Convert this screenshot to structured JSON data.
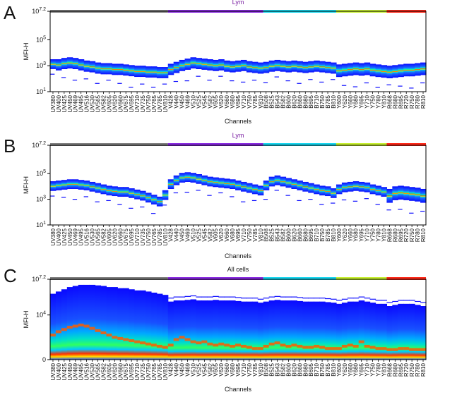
{
  "colors": {
    "gray": "#7f7f7f",
    "purple": "#8a2be2",
    "cyan": "#19d7f0",
    "lime": "#c8f032",
    "red": "#ff2a1a",
    "frame": "#000000",
    "density_low": "#1010ff",
    "density_mid": "#00e0a0",
    "density_high": "#ff2000",
    "lym_title": "#7a1fa2",
    "all_title": "#111111"
  },
  "chart_data": [
    {
      "type": "heatmap",
      "panel": "A",
      "title": "Lym",
      "xlabel": "Channels",
      "ylabel": "MFI-H",
      "yscale": "log",
      "ylim": [
        1,
        7.2
      ],
      "yticks": [
        {
          "base": "10",
          "exp": "7.2",
          "v": 7.2
        },
        {
          "base": "10",
          "exp": "5",
          "v": 5
        },
        {
          "base": "10",
          "exp": "3",
          "v": 3
        },
        {
          "base": "10",
          "exp": "1",
          "v": 1
        }
      ],
      "categories": [
        "UV380",
        "UV400",
        "UV425",
        "UV450",
        "UV469",
        "UV495",
        "UV516",
        "UV530",
        "UV565",
        "UV582",
        "UV605",
        "UV620",
        "UV660",
        "UV675",
        "UV695",
        "UV710",
        "UV735",
        "UV750",
        "UV765",
        "UV785",
        "UV810",
        "V428",
        "V440",
        "V450",
        "V469",
        "V510",
        "V525",
        "V545",
        "V582",
        "V605",
        "V620",
        "V660",
        "V680",
        "V695",
        "V710",
        "V750",
        "V785",
        "V810",
        "B508",
        "B525",
        "B543",
        "B582",
        "B600",
        "B620",
        "B660",
        "B680",
        "B695",
        "B710",
        "B750",
        "B785",
        "B810",
        "Y600",
        "Y620",
        "Y660",
        "Y680",
        "Y695",
        "Y710",
        "Y750",
        "Y780",
        "Y810",
        "R668",
        "R680",
        "R695",
        "R720",
        "R750",
        "R780",
        "R810"
      ],
      "groups": [
        {
          "color": "gray",
          "n": 21
        },
        {
          "color": "purple",
          "n": 17
        },
        {
          "color": "cyan",
          "n": 13
        },
        {
          "color": "lime",
          "n": 9
        },
        {
          "color": "red",
          "n": 7
        }
      ],
      "series": [
        {
          "name": "median",
          "values": [
            3.15,
            3.1,
            3.2,
            3.25,
            3.2,
            3.1,
            3.0,
            2.95,
            2.85,
            2.8,
            2.8,
            2.75,
            2.75,
            2.7,
            2.65,
            2.6,
            2.6,
            2.55,
            2.55,
            2.5,
            2.5,
            2.75,
            2.9,
            3.05,
            3.15,
            3.25,
            3.2,
            3.15,
            3.1,
            3.05,
            3.1,
            3.0,
            2.95,
            3.0,
            3.05,
            2.95,
            2.9,
            2.85,
            2.9,
            3.0,
            3.05,
            3.0,
            2.95,
            3.0,
            2.95,
            2.9,
            2.95,
            3.0,
            2.95,
            2.9,
            2.85,
            2.65,
            2.7,
            2.75,
            2.8,
            2.75,
            2.8,
            2.7,
            2.65,
            2.6,
            2.55,
            2.6,
            2.65,
            2.7,
            2.7,
            2.75,
            2.8
          ]
        },
        {
          "name": "spread",
          "values": [
            0.35,
            0.4,
            0.4,
            0.4,
            0.4,
            0.4,
            0.4,
            0.4,
            0.4,
            0.4,
            0.4,
            0.4,
            0.4,
            0.4,
            0.4,
            0.4,
            0.4,
            0.4,
            0.4,
            0.4,
            0.4,
            0.4,
            0.4,
            0.4,
            0.4,
            0.4,
            0.4,
            0.4,
            0.4,
            0.4,
            0.4,
            0.4,
            0.4,
            0.4,
            0.4,
            0.4,
            0.4,
            0.4,
            0.4,
            0.4,
            0.4,
            0.4,
            0.4,
            0.4,
            0.4,
            0.4,
            0.4,
            0.4,
            0.4,
            0.4,
            0.4,
            0.45,
            0.45,
            0.45,
            0.45,
            0.45,
            0.45,
            0.45,
            0.45,
            0.45,
            0.45,
            0.45,
            0.45,
            0.45,
            0.45,
            0.45,
            0.45
          ]
        }
      ]
    },
    {
      "type": "heatmap",
      "panel": "B",
      "title": "Lym",
      "xlabel": "Channels",
      "ylabel": "MFI-H",
      "yscale": "log",
      "ylim": [
        1,
        7.2
      ],
      "yticks": [
        {
          "base": "10",
          "exp": "7.2",
          "v": 7.2
        },
        {
          "base": "10",
          "exp": "5",
          "v": 5
        },
        {
          "base": "10",
          "exp": "3",
          "v": 3
        },
        {
          "base": "10",
          "exp": "1",
          "v": 1
        }
      ],
      "categories": [
        "UV380",
        "UV400",
        "UV425",
        "UV450",
        "UV469",
        "UV495",
        "UV516",
        "UV530",
        "UV565",
        "UV582",
        "UV605",
        "UV620",
        "UV660",
        "UV675",
        "UV695",
        "UV710",
        "UV735",
        "UV750",
        "UV765",
        "UV785",
        "UV810",
        "V428",
        "V440",
        "V450",
        "V469",
        "V510",
        "V525",
        "V545",
        "V582",
        "V605",
        "V620",
        "V660",
        "V680",
        "V695",
        "V710",
        "V750",
        "V785",
        "V810",
        "B508",
        "B525",
        "B543",
        "B582",
        "B600",
        "B620",
        "B660",
        "B680",
        "B695",
        "B710",
        "B750",
        "B785",
        "B810",
        "Y600",
        "Y620",
        "Y660",
        "Y680",
        "Y695",
        "Y710",
        "Y750",
        "Y780",
        "Y810",
        "R668",
        "R680",
        "R695",
        "R720",
        "R750",
        "R780",
        "R810"
      ],
      "groups": [
        {
          "color": "gray",
          "n": 21
        },
        {
          "color": "purple",
          "n": 17
        },
        {
          "color": "cyan",
          "n": 13
        },
        {
          "color": "lime",
          "n": 9
        },
        {
          "color": "red",
          "n": 7
        }
      ],
      "series": [
        {
          "name": "median",
          "values": [
            4.05,
            4.1,
            4.15,
            4.2,
            4.2,
            4.15,
            4.1,
            4.0,
            3.9,
            3.8,
            3.7,
            3.65,
            3.6,
            3.6,
            3.5,
            3.4,
            3.3,
            3.15,
            3.0,
            2.85,
            3.35,
            4.2,
            4.5,
            4.7,
            4.75,
            4.7,
            4.6,
            4.5,
            4.4,
            4.35,
            4.3,
            4.25,
            4.2,
            4.1,
            4.0,
            3.9,
            3.8,
            3.7,
            4.1,
            4.4,
            4.5,
            4.4,
            4.3,
            4.2,
            4.1,
            4.0,
            3.9,
            3.8,
            3.7,
            3.65,
            3.5,
            3.8,
            3.95,
            4.0,
            4.05,
            4.0,
            3.95,
            3.8,
            3.7,
            3.6,
            3.3,
            3.5,
            3.55,
            3.5,
            3.45,
            3.4,
            3.3
          ]
        },
        {
          "name": "spread",
          "values": [
            0.35,
            0.35,
            0.35,
            0.35,
            0.35,
            0.35,
            0.35,
            0.35,
            0.35,
            0.35,
            0.35,
            0.35,
            0.35,
            0.35,
            0.35,
            0.35,
            0.35,
            0.35,
            0.35,
            0.35,
            0.35,
            0.35,
            0.35,
            0.35,
            0.35,
            0.35,
            0.35,
            0.35,
            0.35,
            0.35,
            0.35,
            0.35,
            0.35,
            0.35,
            0.35,
            0.35,
            0.35,
            0.35,
            0.35,
            0.35,
            0.35,
            0.35,
            0.35,
            0.35,
            0.35,
            0.35,
            0.35,
            0.35,
            0.35,
            0.35,
            0.35,
            0.35,
            0.35,
            0.35,
            0.35,
            0.35,
            0.35,
            0.35,
            0.35,
            0.35,
            0.5,
            0.5,
            0.5,
            0.5,
            0.5,
            0.5,
            0.5
          ]
        }
      ]
    },
    {
      "type": "heatmap",
      "panel": "C",
      "title": "All cells",
      "xlabel": "Channels",
      "ylabel": "MFI-H",
      "yscale": "biexponential",
      "ylim": [
        0,
        7.2
      ],
      "yticks": [
        {
          "base": "10",
          "exp": "7.2",
          "v": 7.2
        },
        {
          "base": "10",
          "exp": "4",
          "v": 4
        },
        {
          "base": "0",
          "exp": "",
          "v": 0
        }
      ],
      "categories": [
        "UV380",
        "UV400",
        "UV425",
        "UV450",
        "UV469",
        "UV495",
        "UV516",
        "UV530",
        "UV565",
        "UV582",
        "UV605",
        "UV620",
        "UV660",
        "UV675",
        "UV695",
        "UV710",
        "UV735",
        "UV750",
        "UV765",
        "UV785",
        "UV810",
        "V428",
        "V440",
        "V450",
        "V469",
        "V510",
        "V525",
        "V545",
        "V582",
        "V605",
        "V620",
        "V660",
        "V680",
        "V695",
        "V710",
        "V750",
        "V785",
        "V810",
        "B508",
        "B525",
        "B543",
        "B582",
        "B600",
        "B620",
        "B660",
        "B680",
        "B695",
        "B710",
        "B750",
        "B785",
        "B810",
        "Y600",
        "Y620",
        "Y660",
        "Y680",
        "Y695",
        "Y710",
        "Y750",
        "Y780",
        "Y810",
        "R668",
        "R680",
        "R695",
        "R720",
        "R750",
        "R780",
        "R810"
      ],
      "groups": [
        {
          "color": "gray",
          "n": 21
        },
        {
          "color": "purple",
          "n": 17
        },
        {
          "color": "cyan",
          "n": 13
        },
        {
          "color": "lime",
          "n": 9
        },
        {
          "color": "red",
          "n": 7
        }
      ],
      "series": [
        {
          "name": "upper_extent",
          "values": [
            5.9,
            6.1,
            6.3,
            6.5,
            6.6,
            6.7,
            6.7,
            6.7,
            6.65,
            6.6,
            6.5,
            6.5,
            6.4,
            6.4,
            6.3,
            6.2,
            6.2,
            6.1,
            6.0,
            5.9,
            5.8,
            5.2,
            5.3,
            5.3,
            5.35,
            5.4,
            5.3,
            5.3,
            5.3,
            5.35,
            5.3,
            5.3,
            5.3,
            5.25,
            5.2,
            5.2,
            5.2,
            5.1,
            5.2,
            5.3,
            5.35,
            5.3,
            5.3,
            5.3,
            5.25,
            5.2,
            5.2,
            5.2,
            5.2,
            5.15,
            5.1,
            5.0,
            5.1,
            5.2,
            5.2,
            5.3,
            5.2,
            5.1,
            5.0,
            5.0,
            4.8,
            4.9,
            5.0,
            5.0,
            5.0,
            4.9,
            4.8
          ]
        },
        {
          "name": "bright_band",
          "values": [
            2.2,
            2.5,
            2.7,
            2.9,
            3.0,
            3.1,
            3.0,
            2.8,
            2.6,
            2.4,
            2.2,
            2.0,
            1.9,
            1.8,
            1.7,
            1.6,
            1.5,
            1.4,
            1.3,
            1.2,
            1.1,
            1.3,
            1.8,
            2.0,
            1.8,
            1.6,
            1.5,
            1.6,
            1.4,
            1.3,
            1.4,
            1.3,
            1.2,
            1.3,
            1.2,
            1.1,
            1.0,
            1.0,
            1.2,
            1.4,
            1.5,
            1.3,
            1.2,
            1.3,
            1.2,
            1.1,
            1.1,
            1.2,
            1.1,
            1.0,
            1.0,
            1.0,
            1.2,
            1.3,
            1.2,
            1.6,
            1.2,
            1.1,
            1.0,
            1.0,
            0.9,
            0.9,
            1.0,
            1.0,
            0.9,
            0.9,
            0.9
          ]
        }
      ]
    }
  ]
}
